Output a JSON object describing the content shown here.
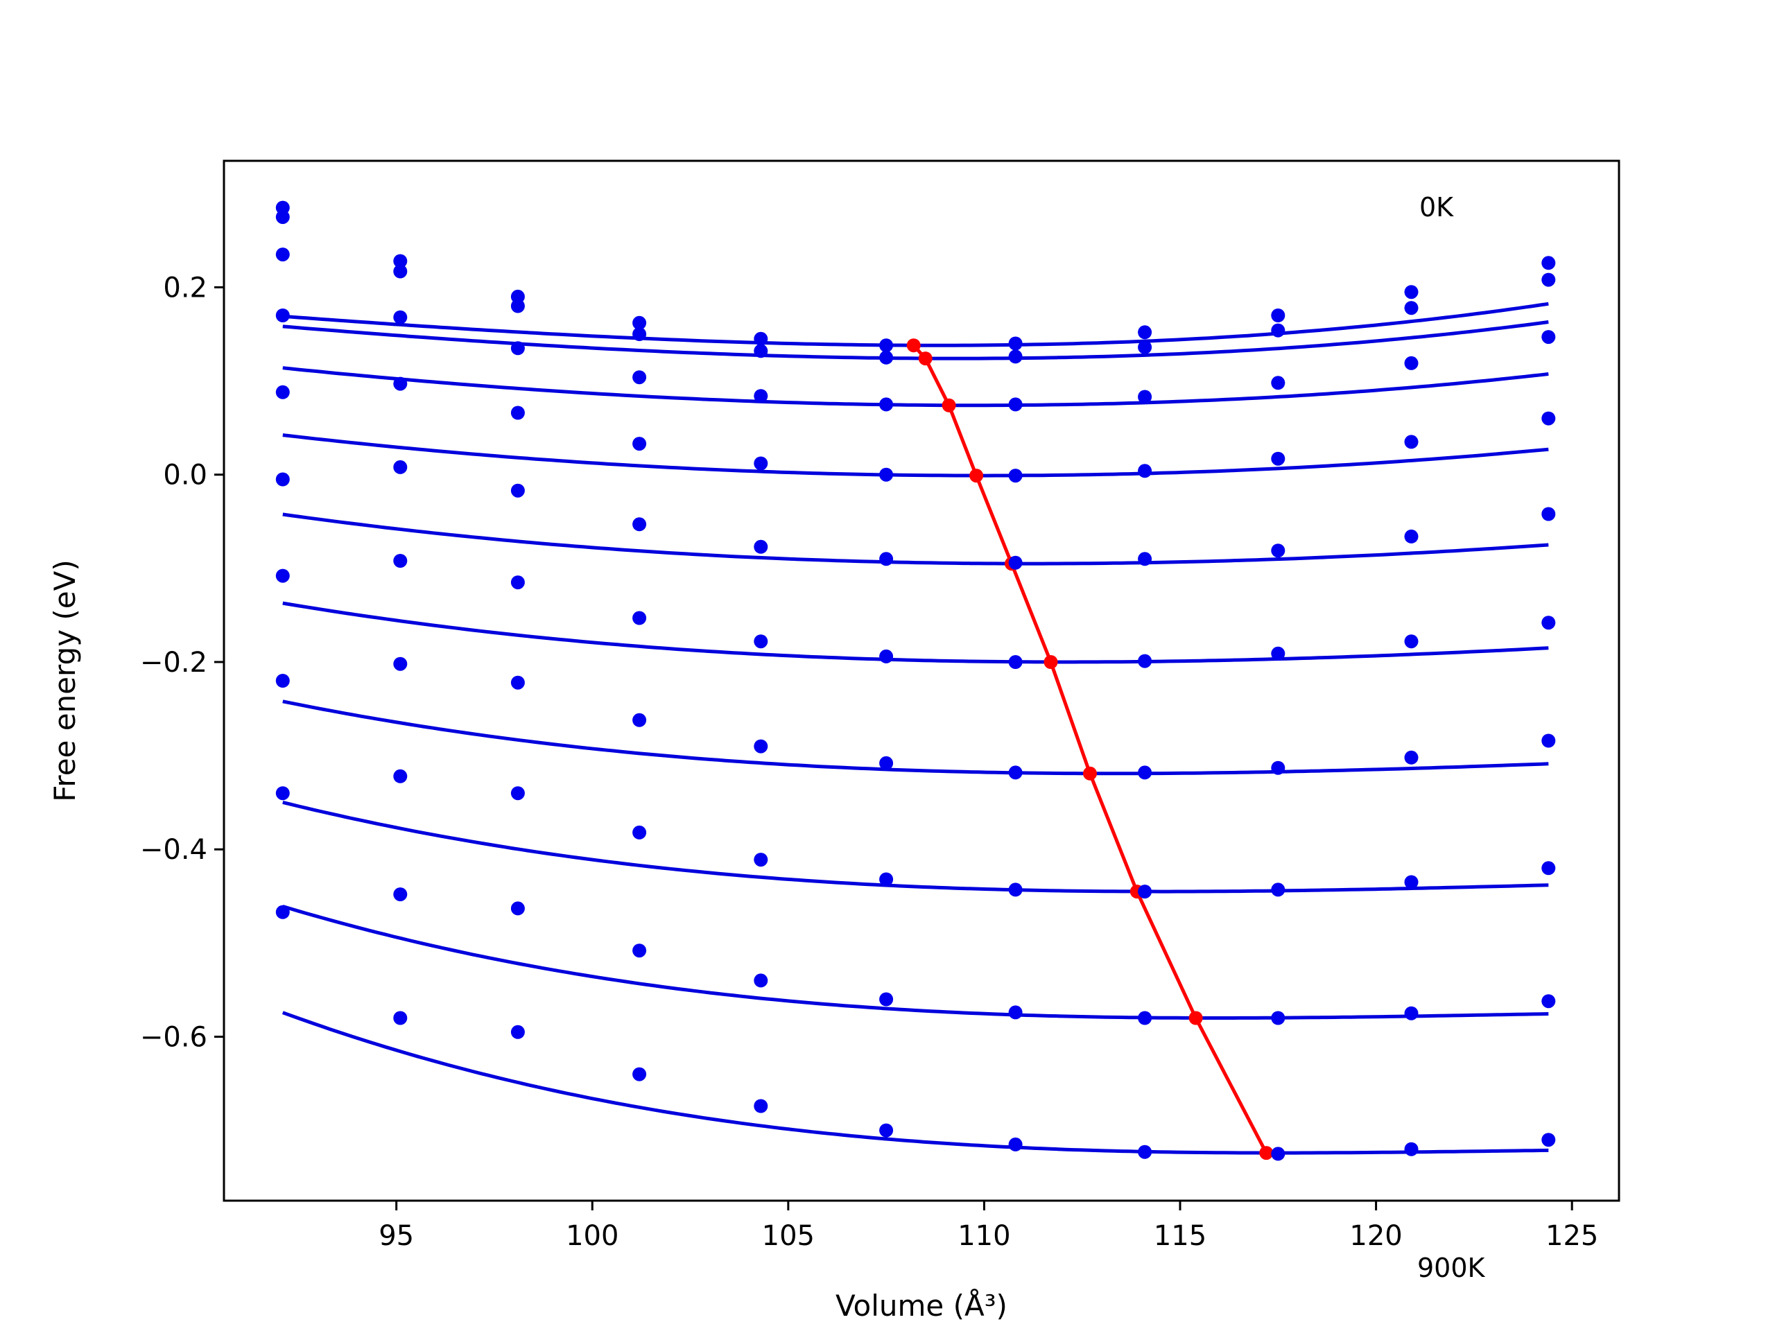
{
  "chart_data": {
    "type": "line",
    "title": "",
    "xlabel": "Volume (Å³)",
    "ylabel": "Free energy (eV)",
    "xlim": [
      90.6,
      126.2
    ],
    "ylim": [
      -0.775,
      0.335
    ],
    "xticks": [
      95,
      100,
      105,
      110,
      115,
      120,
      125
    ],
    "yticks": [
      0.2,
      0.0,
      -0.2,
      -0.4,
      -0.6
    ],
    "ytick_labels": [
      "0.2",
      "0.0",
      "−0.2",
      "−0.4",
      "−0.6"
    ],
    "grid": false,
    "annotations": [
      {
        "text": "0K"
      },
      {
        "text": "900K"
      }
    ],
    "volumes": [
      92.1,
      95.1,
      98.1,
      101.2,
      104.3,
      107.5,
      110.8,
      114.1,
      117.5,
      120.9,
      124.4
    ],
    "colors": {
      "points": "#0000ee",
      "fit": "#0000dd",
      "minimum": "#ff0000"
    },
    "series": [
      {
        "points": [
          0.285,
          0.228,
          0.19,
          0.162,
          0.145,
          0.138,
          0.14,
          0.152,
          0.17,
          0.195,
          0.226
        ],
        "fit": {
          "v0": 108.8,
          "e0": 0.138,
          "a": 0.000148,
          "b": 2.2e-06
        }
      },
      {
        "points": [
          0.275,
          0.217,
          0.18,
          0.15,
          0.132,
          0.125,
          0.126,
          0.136,
          0.154,
          0.178,
          0.208
        ],
        "fit": {
          "v0": 109.3,
          "e0": 0.124,
          "a": 0.000145,
          "b": 1.7e-06
        }
      },
      {
        "points": [
          0.235,
          0.168,
          0.135,
          0.104,
          0.084,
          0.075,
          0.075,
          0.083,
          0.098,
          0.119,
          0.147
        ],
        "fit": {
          "v0": 109.7,
          "e0": 0.074,
          "a": 0.000143,
          "b": 8e-07
        }
      },
      {
        "points": [
          0.17,
          0.097,
          0.066,
          0.033,
          0.012,
          0.0,
          -0.001,
          0.004,
          0.017,
          0.035,
          0.06
        ],
        "fit": {
          "v0": 110.0,
          "e0": -0.001,
          "a": 0.000135,
          "b": 0.0
        }
      },
      {
        "points": [
          0.088,
          0.008,
          -0.017,
          -0.053,
          -0.077,
          -0.09,
          -0.094,
          -0.09,
          -0.081,
          -0.066,
          -0.042
        ],
        "fit": {
          "v0": 111.2,
          "e0": -0.095,
          "a": 0.000127,
          "b": -9e-07
        }
      },
      {
        "points": [
          -0.005,
          -0.092,
          -0.115,
          -0.153,
          -0.178,
          -0.194,
          -0.2,
          -0.199,
          -0.191,
          -0.178,
          -0.158
        ],
        "fit": {
          "v0": 112.1,
          "e0": -0.2,
          "a": 0.000121,
          "b": -1.8e-06
        }
      },
      {
        "points": [
          -0.108,
          -0.202,
          -0.222,
          -0.262,
          -0.29,
          -0.308,
          -0.318,
          -0.318,
          -0.313,
          -0.302,
          -0.284
        ],
        "fit": {
          "v0": 113.3,
          "e0": -0.319,
          "a": 0.000114,
          "b": -2.7e-06
        }
      },
      {
        "points": [
          -0.22,
          -0.322,
          -0.34,
          -0.382,
          -0.411,
          -0.432,
          -0.443,
          -0.445,
          -0.443,
          -0.435,
          -0.42
        ],
        "fit": {
          "v0": 114.6,
          "e0": -0.445,
          "a": 0.000107,
          "b": -3.6e-06
        }
      },
      {
        "points": [
          -0.34,
          -0.448,
          -0.463,
          -0.508,
          -0.54,
          -0.56,
          -0.574,
          -0.58,
          -0.58,
          -0.575,
          -0.562
        ],
        "fit": {
          "v0": 116.0,
          "e0": -0.58,
          "a": 0.000101,
          "b": -4.5e-06
        }
      },
      {
        "points": [
          -0.467,
          -0.58,
          -0.595,
          -0.64,
          -0.674,
          -0.7,
          -0.715,
          -0.723,
          -0.725,
          -0.72,
          -0.71
        ],
        "fit": {
          "v0": 117.5,
          "e0": -0.724,
          "a": 9.5e-05,
          "b": -5.4e-06
        }
      }
    ],
    "minimum_curve": {
      "x": [
        108.2,
        108.5,
        109.1,
        109.8,
        110.7,
        111.7,
        112.7,
        113.9,
        115.4,
        117.2
      ],
      "y": [
        0.138,
        0.124,
        0.074,
        -0.001,
        -0.095,
        -0.2,
        -0.319,
        -0.445,
        -0.58,
        -0.724
      ]
    }
  }
}
